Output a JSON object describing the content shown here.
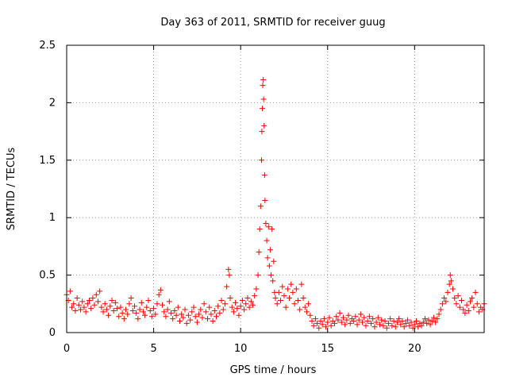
{
  "chart_data": {
    "type": "scatter",
    "title": "Day 363 of 2011, SRMTID for receiver guug",
    "xlabel": "GPS time / hours",
    "ylabel": "SRMTID / TECUs",
    "xlim": [
      0,
      24
    ],
    "ylim": [
      0,
      2.5
    ],
    "xticks": [
      0,
      5,
      10,
      15,
      20
    ],
    "yticks": [
      0,
      0.5,
      1,
      1.5,
      2,
      2.5
    ],
    "xtick_labels": [
      "0",
      "5",
      "10",
      "15",
      "20"
    ],
    "ytick_labels": [
      "0",
      "0.5",
      "1",
      "1.5",
      "2",
      "2.5"
    ],
    "grid": true,
    "marker": "+",
    "marker_color": "#ff0000",
    "series": [
      {
        "name": "SRMTID",
        "points": [
          [
            0.0,
            0.33
          ],
          [
            0.1,
            0.28
          ],
          [
            0.2,
            0.36
          ],
          [
            0.3,
            0.22
          ],
          [
            0.4,
            0.25
          ],
          [
            0.5,
            0.19
          ],
          [
            0.6,
            0.3
          ],
          [
            0.7,
            0.24
          ],
          [
            0.8,
            0.2
          ],
          [
            0.9,
            0.27
          ],
          [
            1.0,
            0.22
          ],
          [
            1.1,
            0.18
          ],
          [
            1.2,
            0.25
          ],
          [
            1.3,
            0.28
          ],
          [
            1.4,
            0.21
          ],
          [
            1.5,
            0.3
          ],
          [
            1.6,
            0.24
          ],
          [
            1.7,
            0.33
          ],
          [
            1.8,
            0.27
          ],
          [
            1.9,
            0.36
          ],
          [
            2.0,
            0.22
          ],
          [
            2.1,
            0.18
          ],
          [
            2.2,
            0.25
          ],
          [
            2.3,
            0.2
          ],
          [
            2.4,
            0.15
          ],
          [
            2.5,
            0.23
          ],
          [
            2.6,
            0.28
          ],
          [
            2.7,
            0.19
          ],
          [
            2.8,
            0.26
          ],
          [
            2.9,
            0.21
          ],
          [
            3.0,
            0.14
          ],
          [
            3.1,
            0.22
          ],
          [
            3.2,
            0.17
          ],
          [
            3.3,
            0.12
          ],
          [
            3.4,
            0.2
          ],
          [
            3.5,
            0.16
          ],
          [
            3.6,
            0.25
          ],
          [
            3.7,
            0.3
          ],
          [
            3.8,
            0.19
          ],
          [
            3.9,
            0.23
          ],
          [
            4.0,
            0.17
          ],
          [
            4.1,
            0.12
          ],
          [
            4.2,
            0.2
          ],
          [
            4.3,
            0.26
          ],
          [
            4.4,
            0.18
          ],
          [
            4.5,
            0.15
          ],
          [
            4.6,
            0.22
          ],
          [
            4.7,
            0.28
          ],
          [
            4.8,
            0.19
          ],
          [
            4.9,
            0.14
          ],
          [
            5.0,
            0.21
          ],
          [
            5.1,
            0.16
          ],
          [
            5.2,
            0.25
          ],
          [
            5.3,
            0.33
          ],
          [
            5.4,
            0.37
          ],
          [
            5.5,
            0.24
          ],
          [
            5.6,
            0.18
          ],
          [
            5.7,
            0.14
          ],
          [
            5.8,
            0.2
          ],
          [
            5.9,
            0.27
          ],
          [
            6.0,
            0.17
          ],
          [
            6.1,
            0.12
          ],
          [
            6.2,
            0.19
          ],
          [
            6.3,
            0.15
          ],
          [
            6.4,
            0.22
          ],
          [
            6.5,
            0.1
          ],
          [
            6.6,
            0.16
          ],
          [
            6.7,
            0.13
          ],
          [
            6.8,
            0.2
          ],
          [
            6.9,
            0.08
          ],
          [
            7.0,
            0.15
          ],
          [
            7.1,
            0.11
          ],
          [
            7.2,
            0.18
          ],
          [
            7.3,
            0.22
          ],
          [
            7.4,
            0.14
          ],
          [
            7.5,
            0.09
          ],
          [
            7.6,
            0.16
          ],
          [
            7.7,
            0.2
          ],
          [
            7.8,
            0.13
          ],
          [
            7.9,
            0.25
          ],
          [
            8.0,
            0.18
          ],
          [
            8.1,
            0.12
          ],
          [
            8.2,
            0.22
          ],
          [
            8.3,
            0.16
          ],
          [
            8.4,
            0.1
          ],
          [
            8.5,
            0.19
          ],
          [
            8.6,
            0.14
          ],
          [
            8.7,
            0.23
          ],
          [
            8.8,
            0.17
          ],
          [
            8.9,
            0.28
          ],
          [
            9.0,
            0.2
          ],
          [
            9.1,
            0.25
          ],
          [
            9.2,
            0.4
          ],
          [
            9.3,
            0.55
          ],
          [
            9.35,
            0.5
          ],
          [
            9.4,
            0.3
          ],
          [
            9.5,
            0.22
          ],
          [
            9.6,
            0.18
          ],
          [
            9.7,
            0.26
          ],
          [
            9.8,
            0.21
          ],
          [
            9.9,
            0.15
          ],
          [
            10.0,
            0.23
          ],
          [
            10.1,
            0.28
          ],
          [
            10.2,
            0.2
          ],
          [
            10.3,
            0.25
          ],
          [
            10.4,
            0.3
          ],
          [
            10.5,
            0.22
          ],
          [
            10.6,
            0.27
          ],
          [
            10.7,
            0.24
          ],
          [
            10.8,
            0.32
          ],
          [
            10.9,
            0.38
          ],
          [
            11.0,
            0.5
          ],
          [
            11.05,
            0.7
          ],
          [
            11.1,
            0.9
          ],
          [
            11.15,
            1.1
          ],
          [
            11.2,
            1.5
          ],
          [
            11.22,
            1.75
          ],
          [
            11.25,
            1.95
          ],
          [
            11.27,
            2.15
          ],
          [
            11.3,
            2.2
          ],
          [
            11.32,
            2.03
          ],
          [
            11.35,
            1.8
          ],
          [
            11.38,
            1.37
          ],
          [
            11.4,
            1.15
          ],
          [
            11.45,
            0.95
          ],
          [
            11.5,
            0.8
          ],
          [
            11.55,
            0.65
          ],
          [
            11.6,
            0.92
          ],
          [
            11.65,
            0.58
          ],
          [
            11.7,
            0.72
          ],
          [
            11.75,
            0.5
          ],
          [
            11.8,
            0.9
          ],
          [
            11.85,
            0.45
          ],
          [
            11.9,
            0.62
          ],
          [
            11.95,
            0.35
          ],
          [
            12.0,
            0.3
          ],
          [
            12.1,
            0.25
          ],
          [
            12.2,
            0.35
          ],
          [
            12.3,
            0.28
          ],
          [
            12.4,
            0.4
          ],
          [
            12.5,
            0.32
          ],
          [
            12.6,
            0.22
          ],
          [
            12.7,
            0.38
          ],
          [
            12.8,
            0.3
          ],
          [
            12.9,
            0.42
          ],
          [
            13.0,
            0.35
          ],
          [
            13.1,
            0.25
          ],
          [
            13.2,
            0.38
          ],
          [
            13.3,
            0.28
          ],
          [
            13.4,
            0.2
          ],
          [
            13.5,
            0.42
          ],
          [
            13.6,
            0.3
          ],
          [
            13.7,
            0.22
          ],
          [
            13.8,
            0.18
          ],
          [
            13.9,
            0.25
          ],
          [
            14.0,
            0.15
          ],
          [
            14.1,
            0.1
          ],
          [
            14.2,
            0.06
          ],
          [
            14.3,
            0.12
          ],
          [
            14.4,
            0.08
          ],
          [
            14.5,
            0.04
          ],
          [
            14.6,
            0.1
          ],
          [
            14.7,
            0.07
          ],
          [
            14.8,
            0.12
          ],
          [
            14.9,
            0.05
          ],
          [
            15.0,
            0.09
          ],
          [
            15.1,
            0.13
          ],
          [
            15.2,
            0.06
          ],
          [
            15.3,
            0.1
          ],
          [
            15.4,
            0.08
          ],
          [
            15.5,
            0.14
          ],
          [
            15.6,
            0.11
          ],
          [
            15.7,
            0.17
          ],
          [
            15.8,
            0.09
          ],
          [
            15.9,
            0.13
          ],
          [
            16.0,
            0.07
          ],
          [
            16.1,
            0.11
          ],
          [
            16.2,
            0.15
          ],
          [
            16.3,
            0.08
          ],
          [
            16.4,
            0.12
          ],
          [
            16.5,
            0.1
          ],
          [
            16.6,
            0.14
          ],
          [
            16.7,
            0.07
          ],
          [
            16.8,
            0.11
          ],
          [
            16.9,
            0.16
          ],
          [
            17.0,
            0.09
          ],
          [
            17.1,
            0.13
          ],
          [
            17.2,
            0.06
          ],
          [
            17.3,
            0.1
          ],
          [
            17.4,
            0.14
          ],
          [
            17.5,
            0.08
          ],
          [
            17.6,
            0.12
          ],
          [
            17.7,
            0.05
          ],
          [
            17.8,
            0.09
          ],
          [
            17.9,
            0.13
          ],
          [
            18.0,
            0.07
          ],
          [
            18.1,
            0.11
          ],
          [
            18.2,
            0.06
          ],
          [
            18.3,
            0.1
          ],
          [
            18.4,
            0.04
          ],
          [
            18.5,
            0.08
          ],
          [
            18.6,
            0.12
          ],
          [
            18.7,
            0.06
          ],
          [
            18.8,
            0.1
          ],
          [
            18.9,
            0.05
          ],
          [
            19.0,
            0.09
          ],
          [
            19.1,
            0.12
          ],
          [
            19.2,
            0.07
          ],
          [
            19.3,
            0.1
          ],
          [
            19.4,
            0.05
          ],
          [
            19.5,
            0.08
          ],
          [
            19.6,
            0.11
          ],
          [
            19.7,
            0.06
          ],
          [
            19.8,
            0.09
          ],
          [
            19.9,
            0.04
          ],
          [
            20.0,
            0.07
          ],
          [
            20.1,
            0.1
          ],
          [
            20.2,
            0.05
          ],
          [
            20.3,
            0.08
          ],
          [
            20.4,
            0.06
          ],
          [
            20.5,
            0.09
          ],
          [
            20.6,
            0.12
          ],
          [
            20.7,
            0.08
          ],
          [
            20.8,
            0.11
          ],
          [
            20.9,
            0.07
          ],
          [
            21.0,
            0.1
          ],
          [
            21.1,
            0.13
          ],
          [
            21.2,
            0.09
          ],
          [
            21.3,
            0.12
          ],
          [
            21.4,
            0.16
          ],
          [
            21.5,
            0.2
          ],
          [
            21.6,
            0.25
          ],
          [
            21.7,
            0.3
          ],
          [
            21.8,
            0.27
          ],
          [
            21.9,
            0.35
          ],
          [
            22.0,
            0.42
          ],
          [
            22.05,
            0.5
          ],
          [
            22.1,
            0.45
          ],
          [
            22.2,
            0.38
          ],
          [
            22.3,
            0.3
          ],
          [
            22.4,
            0.25
          ],
          [
            22.5,
            0.32
          ],
          [
            22.6,
            0.22
          ],
          [
            22.7,
            0.28
          ],
          [
            22.8,
            0.2
          ],
          [
            22.9,
            0.17
          ],
          [
            23.0,
            0.24
          ],
          [
            23.1,
            0.19
          ],
          [
            23.2,
            0.27
          ],
          [
            23.3,
            0.3
          ],
          [
            23.4,
            0.22
          ],
          [
            23.5,
            0.35
          ],
          [
            23.6,
            0.25
          ],
          [
            23.7,
            0.18
          ],
          [
            23.8,
            0.22
          ],
          [
            23.9,
            0.2
          ],
          [
            24.0,
            0.25
          ]
        ]
      }
    ]
  }
}
